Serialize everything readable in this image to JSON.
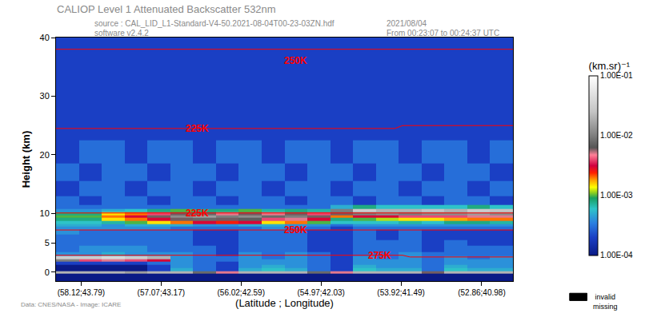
{
  "chart_data": {
    "type": "heatmap",
    "title": "CALIOP Level 1 Attenuated Backscatter 532nm",
    "header": {
      "source": "source : CAL_LID_L1-Standard-V4-50.2021-08-04T00-23-03ZN.hdf",
      "software": "software v2.4.2",
      "date": "2021/08/04",
      "time": "From 00:23:07 to 00:24:37 UTC"
    },
    "footer": "Data: CNES/NASA - Image: ICARE",
    "x_label": "(Latitude ; Longitude)",
    "y_label": "Height (km)",
    "xlim": [
      58.45,
      52.45
    ],
    "xticks": [
      {
        "value": 58.12,
        "label": "(58.12;43.79)"
      },
      {
        "value": 57.07,
        "label": "(57.07;43.17)"
      },
      {
        "value": 56.02,
        "label": "(56.02;42.59)"
      },
      {
        "value": 54.97,
        "label": "(54.97;42.03)"
      },
      {
        "value": 53.92,
        "label": "(53.92;41.49)"
      },
      {
        "value": 52.86,
        "label": "(52.86;40.98)"
      }
    ],
    "ylim": [
      -1.5,
      40
    ],
    "yticks": [
      0,
      5,
      10,
      20,
      30,
      40
    ],
    "grid": false,
    "colorbar": {
      "title": "(km.sr)⁻¹",
      "range": [
        0.0001,
        0.1
      ],
      "ticks": [
        {
          "value": 0.1,
          "label": "1.00E-01"
        },
        {
          "value": 0.01,
          "label": "1.00E-02"
        },
        {
          "value": 0.001,
          "label": "1.00E-03"
        },
        {
          "value": 0.0001,
          "label": "1.00E-04"
        }
      ]
    },
    "missing_legend": [
      "invalid",
      "missing"
    ],
    "x": [
      58.3,
      58.0,
      57.7,
      57.4,
      57.1,
      56.8,
      56.5,
      56.2,
      55.9,
      55.6,
      55.3,
      55.0,
      54.7,
      54.4,
      54.1,
      53.8,
      53.5,
      53.2,
      52.9,
      52.6
    ],
    "y": [
      -1.2,
      -0.5,
      0,
      0.5,
      1,
      1.5,
      2,
      2.5,
      3,
      4,
      5,
      6,
      7,
      7.5,
      8,
      8.5,
      9,
      9.5,
      10,
      10.5,
      11,
      12,
      14,
      17,
      20,
      25,
      30,
      35,
      40
    ],
    "cells": [
      [
        0.0001,
        0.0001,
        0.0001,
        0.0001,
        0.0001,
        0.0001,
        0.0001,
        0.0001,
        0.0001,
        0.0001,
        0.0001,
        0.0001,
        0.0001,
        0.0001,
        0.0001,
        0.0001,
        0.0001,
        0.0001,
        0.0001,
        0.0001
      ],
      [
        0.0001,
        0.0001,
        0.0001,
        0.0001,
        0.0001,
        0.0001,
        0.0001,
        0.0001,
        0.0001,
        0.0001,
        0.0001,
        0.0001,
        0.0001,
        0.0001,
        0.0001,
        0.0001,
        0.0001,
        0.0001,
        0.0001,
        0.0001
      ],
      [
        0.02,
        0.02,
        0.02,
        0.015,
        0.02,
        0.02,
        0.008,
        0.005,
        0.02,
        0.02,
        0.02,
        0.008,
        0.005,
        0.02,
        0.02,
        0.02,
        0.006,
        0.02,
        0.02,
        0.02
      ],
      [
        0.0001,
        0.0001,
        0.0001,
        0.0001,
        0.0002,
        0.0005,
        0.0003,
        0.0002,
        0.0005,
        0.0006,
        0.0005,
        0.0003,
        0.0002,
        0.0006,
        0.0005,
        0.0005,
        0.0003,
        0.0006,
        0.0005,
        0.0005
      ],
      [
        0.0001,
        0.0001,
        0.0001,
        0.0001,
        0.0002,
        0.0004,
        0.0003,
        0.0002,
        0.0004,
        0.0005,
        0.0004,
        0.0003,
        0.0002,
        0.0005,
        0.0004,
        0.0004,
        0.0003,
        0.0005,
        0.0004,
        0.0004
      ],
      [
        0.0002,
        0.0002,
        0.0002,
        0.0002,
        0.0003,
        0.0004,
        0.0003,
        0.0002,
        0.0004,
        0.0004,
        0.0004,
        0.0003,
        0.0002,
        0.0004,
        0.0004,
        0.0004,
        0.0003,
        0.0004,
        0.0004,
        0.0004
      ],
      [
        0.01,
        0.004,
        0.005,
        0.004,
        0.003,
        0.0004,
        0.0003,
        0.0003,
        0.0004,
        0.0004,
        0.0004,
        0.0003,
        0.0002,
        0.0004,
        0.0004,
        0.0004,
        0.0003,
        0.0004,
        0.0004,
        0.0004
      ],
      [
        0.03,
        0.03,
        0.04,
        0.03,
        0.02,
        0.0004,
        0.0003,
        0.0003,
        0.0004,
        0.0003,
        0.0004,
        0.0003,
        0.0002,
        0.0004,
        0.0003,
        0.0004,
        0.0003,
        0.0004,
        0.0003,
        0.0004
      ],
      [
        0.0004,
        0.0004,
        0.0005,
        0.0004,
        0.0004,
        0.0004,
        0.0003,
        0.0002,
        0.0004,
        0.0003,
        0.0004,
        0.0003,
        0.0002,
        0.0003,
        0.0003,
        0.0004,
        0.0003,
        0.0003,
        0.0003,
        0.0003
      ],
      [
        0.0003,
        0.0004,
        0.0004,
        0.0004,
        0.0003,
        0.0003,
        0.0003,
        0.0002,
        0.0003,
        0.0003,
        0.0003,
        0.0002,
        0.0002,
        0.0003,
        0.0003,
        0.0003,
        0.0002,
        0.0003,
        0.0003,
        0.0003
      ],
      [
        0.0003,
        0.0003,
        0.0003,
        0.0003,
        0.0003,
        0.0003,
        0.0002,
        0.0002,
        0.0003,
        0.0003,
        0.0003,
        0.0002,
        0.0002,
        0.0003,
        0.0003,
        0.0003,
        0.0002,
        0.0003,
        0.0002,
        0.0002
      ],
      [
        0.0003,
        0.0003,
        0.0003,
        0.0003,
        0.0003,
        0.0003,
        0.0002,
        0.0002,
        0.0003,
        0.0003,
        0.0003,
        0.0002,
        0.0002,
        0.0003,
        0.0002,
        0.0003,
        0.0002,
        0.0002,
        0.0002,
        0.0002
      ],
      [
        0.0004,
        0.0003,
        0.0003,
        0.0003,
        0.0003,
        0.0003,
        0.0002,
        0.0002,
        0.0003,
        0.0003,
        0.0003,
        0.0002,
        0.0002,
        0.0003,
        0.0002,
        0.0003,
        0.0002,
        0.0002,
        0.0002,
        0.0002
      ],
      [
        0.0004,
        0.0004,
        0.0004,
        0.0004,
        0.0004,
        0.0003,
        0.0003,
        0.0003,
        0.0003,
        0.0004,
        0.0003,
        0.0003,
        0.0002,
        0.0003,
        0.0003,
        0.0003,
        0.0003,
        0.0003,
        0.0003,
        0.0003
      ],
      [
        0.0005,
        0.0005,
        0.0004,
        0.0005,
        0.0005,
        0.0005,
        0.0004,
        0.0004,
        0.0005,
        0.0005,
        0.0004,
        0.0004,
        0.0003,
        0.0004,
        0.0004,
        0.0004,
        0.0004,
        0.0004,
        0.0004,
        0.0004
      ],
      [
        0.0006,
        0.0006,
        0.0007,
        0.001,
        0.0015,
        0.002,
        0.003,
        0.0025,
        0.003,
        0.0015,
        0.002,
        0.001,
        0.0006,
        0.0006,
        0.0006,
        0.0007,
        0.0006,
        0.0008,
        0.0008,
        0.0007
      ],
      [
        0.0008,
        0.0008,
        0.0015,
        0.002,
        0.003,
        0.006,
        0.008,
        0.006,
        0.007,
        0.004,
        0.005,
        0.003,
        0.0008,
        0.001,
        0.0012,
        0.0015,
        0.0015,
        0.0018,
        0.002,
        0.002
      ],
      [
        0.001,
        0.001,
        0.002,
        0.003,
        0.006,
        0.012,
        0.015,
        0.01,
        0.012,
        0.008,
        0.01,
        0.006,
        0.002,
        0.003,
        0.003,
        0.004,
        0.004,
        0.004,
        0.005,
        0.005
      ],
      [
        0.0008,
        0.0008,
        0.0015,
        0.002,
        0.004,
        0.006,
        0.008,
        0.005,
        0.006,
        0.005,
        0.006,
        0.004,
        0.006,
        0.01,
        0.012,
        0.01,
        0.012,
        0.012,
        0.015,
        0.012
      ],
      [
        0.0004,
        0.0004,
        0.0005,
        0.0006,
        0.0008,
        0.001,
        0.0008,
        0.0008,
        0.001,
        0.0007,
        0.0008,
        0.0007,
        0.01,
        0.03,
        0.02,
        0.02,
        0.025,
        0.02,
        0.03,
        0.025
      ],
      [
        0.0003,
        0.0003,
        0.0003,
        0.0003,
        0.0003,
        0.0003,
        0.0003,
        0.0003,
        0.0003,
        0.0003,
        0.0003,
        0.0003,
        0.0005,
        0.0008,
        0.0006,
        0.0006,
        0.0006,
        0.0006,
        0.0008,
        0.0006
      ],
      [
        0.0003,
        0.0002,
        0.0003,
        0.0003,
        0.0002,
        0.0003,
        0.0003,
        0.0002,
        0.0003,
        0.0003,
        0.0002,
        0.0003,
        0.0003,
        0.0002,
        0.0003,
        0.0003,
        0.0002,
        0.0003,
        0.0003,
        0.0002
      ],
      [
        0.0002,
        0.0003,
        0.0003,
        0.0002,
        0.0003,
        0.0003,
        0.0002,
        0.0003,
        0.0003,
        0.0002,
        0.0003,
        0.0003,
        0.0002,
        0.0003,
        0.0003,
        0.0002,
        0.0003,
        0.0003,
        0.0002,
        0.0003
      ],
      [
        0.0003,
        0.0002,
        0.0003,
        0.0003,
        0.0002,
        0.0003,
        0.0003,
        0.0002,
        0.0003,
        0.0003,
        0.0002,
        0.0003,
        0.0003,
        0.0002,
        0.0003,
        0.0003,
        0.0002,
        0.0003,
        0.0003,
        0.0002
      ],
      [
        0.0002,
        0.0003,
        0.0003,
        0.0002,
        0.0003,
        0.0003,
        0.0002,
        0.0003,
        0.0003,
        0.0002,
        0.0003,
        0.0003,
        0.0002,
        0.0003,
        0.0003,
        0.0002,
        0.0003,
        0.0003,
        0.0002,
        0.0003
      ],
      [
        0.0002,
        0.0002,
        0.0002,
        0.0002,
        0.0002,
        0.0002,
        0.0002,
        0.0002,
        0.0002,
        0.0002,
        0.0002,
        0.0002,
        0.0002,
        0.0002,
        0.0002,
        0.0002,
        0.0002,
        0.0002,
        0.0002,
        0.0002
      ],
      [
        0.0002,
        0.0002,
        0.0002,
        0.0002,
        0.0002,
        0.0002,
        0.0002,
        0.0002,
        0.0002,
        0.0002,
        0.0002,
        0.0002,
        0.0002,
        0.0002,
        0.0002,
        0.0002,
        0.0002,
        0.0002,
        0.0002,
        0.0002
      ],
      [
        0.0002,
        0.0002,
        0.0002,
        0.0002,
        0.0002,
        0.0002,
        0.0002,
        0.0002,
        0.0002,
        0.0002,
        0.0002,
        0.0002,
        0.0002,
        0.0002,
        0.0002,
        0.0002,
        0.0002,
        0.0002,
        0.0002,
        0.0002
      ],
      [
        0.0002,
        0.0002,
        0.0002,
        0.0002,
        0.0002,
        0.0002,
        0.0002,
        0.0002,
        0.0002,
        0.0002,
        0.0002,
        0.0002,
        0.0002,
        0.0002,
        0.0002,
        0.0002,
        0.0002,
        0.0002,
        0.0002,
        0.0002
      ]
    ],
    "isotherms": [
      {
        "label": "250K",
        "color": "#ff0000",
        "x": [
          58.45,
          52.45
        ],
        "y": [
          38,
          38
        ],
        "label_at": [
          55.3,
          36
        ]
      },
      {
        "label": "225K",
        "color": "#ff0000",
        "x": [
          58.45,
          54.0,
          53.9,
          52.45
        ],
        "y": [
          24.5,
          24.5,
          25,
          25
        ],
        "label_at": [
          56.6,
          24.5
        ]
      },
      {
        "label": "225K",
        "color": "#ff0000",
        "x": [
          58.45,
          52.45
        ],
        "y": [
          10.1,
          10.1
        ],
        "label_at": [
          56.6,
          10.1
        ]
      },
      {
        "label": "250K",
        "color": "#ff0000",
        "x": [
          58.45,
          52.45
        ],
        "y": [
          7.2,
          7.2
        ],
        "label_at": [
          55.3,
          7.2
        ]
      },
      {
        "label": "275K",
        "color": "#ff0000",
        "x": [
          58.45,
          53.9,
          53.8,
          52.45
        ],
        "y": [
          2.9,
          2.9,
          2.6,
          2.6
        ],
        "label_at": [
          54.2,
          2.8
        ]
      }
    ]
  }
}
